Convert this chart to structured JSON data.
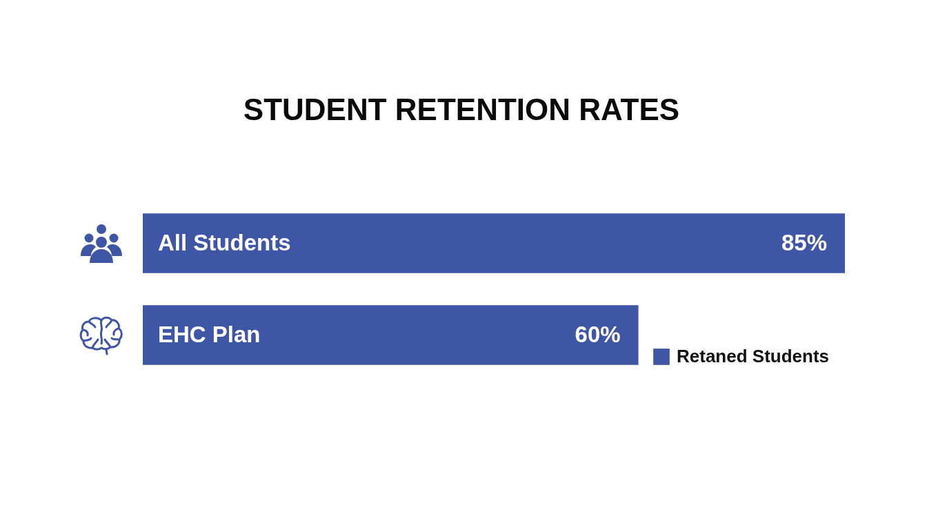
{
  "chart_data": {
    "type": "bar",
    "orientation": "horizontal",
    "title": "STUDENT RETENTION RATES",
    "categories": [
      "All Students",
      "EHC Plan"
    ],
    "series": [
      {
        "name": "Retaned Students",
        "color": "#3f56a6",
        "values": [
          85,
          60
        ],
        "value_labels": [
          "85%",
          "60%"
        ]
      }
    ],
    "legend": "bottom right"
  }
}
